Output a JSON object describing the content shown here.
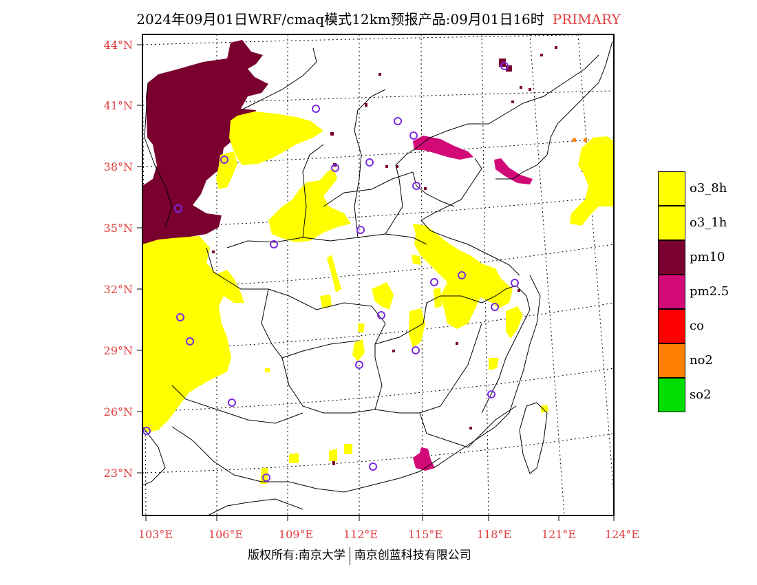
{
  "title": {
    "main": "2024年09月01日WRF/cmaq模式12km预报产品:09月01日16时",
    "tag": "PRIMARY"
  },
  "axes": {
    "lat_labels": [
      "44°N",
      "41°N",
      "38°N",
      "35°N",
      "32°N",
      "29°N",
      "26°N",
      "23°N"
    ],
    "lon_labels": [
      "103°E",
      "106°E",
      "109°E",
      "112°E",
      "115°E",
      "118°E",
      "121°E",
      "124°E"
    ]
  },
  "legend": [
    {
      "label": "o3_8h",
      "color": "#ffff00"
    },
    {
      "label": "o3_1h",
      "color": "#ffff00"
    },
    {
      "label": "pm10",
      "color": "#7a0030"
    },
    {
      "label": "pm2.5",
      "color": "#d20a78"
    },
    {
      "label": "co",
      "color": "#ff0000"
    },
    {
      "label": "no2",
      "color": "#ff8000"
    },
    {
      "label": "so2",
      "color": "#00dd00"
    }
  ],
  "footer": {
    "left": "版权所有:南京大学",
    "right": "南京创蓝科技有限公司"
  },
  "colors": {
    "o3": "#ffff00",
    "pm10": "#7a0030",
    "pm25": "#d20a78",
    "station": "#7a2be2",
    "tick": "#e23a3a"
  }
}
